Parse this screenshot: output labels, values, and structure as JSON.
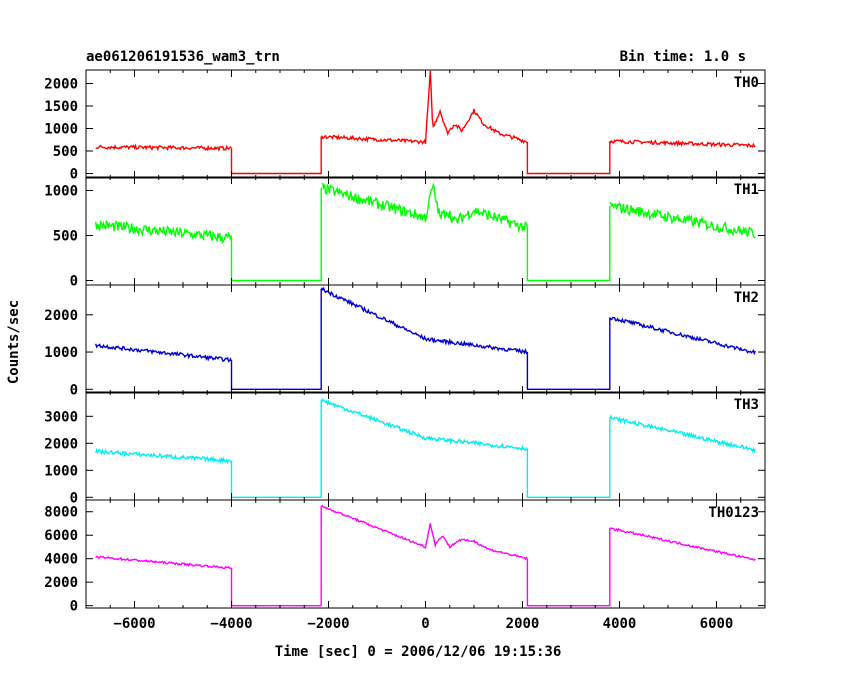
{
  "chart_data": {
    "type": "line",
    "title_left": "ae061206191536_wam3_trn",
    "title_right": "Bin time: 1.0 s",
    "xlabel": "Time [sec] 0 = 2006/12/06 19:15:36",
    "ylabel": "Counts/sec",
    "xlim": [
      -7000,
      7000
    ],
    "x_ticks": [
      -6000,
      -4000,
      -2000,
      0,
      2000,
      4000,
      6000
    ],
    "x_tick_labels": [
      "−6000",
      "−4000",
      "−2000",
      "0",
      "2000",
      "4000",
      "6000"
    ],
    "gaps": [
      [
        -4000,
        -2150
      ],
      [
        2100,
        3800
      ]
    ],
    "panels": [
      {
        "name": "TH0",
        "color": "#ff0000",
        "ylim": [
          -100,
          2300
        ],
        "y_ticks": [
          0,
          500,
          1000,
          1500,
          2000
        ],
        "x": [
          -6800,
          -4000,
          -2150,
          0,
          100,
          150,
          300,
          450,
          600,
          750,
          1000,
          1200,
          1500,
          2100,
          3800,
          6800
        ],
        "values": [
          590,
          560,
          820,
          700,
          2250,
          1000,
          1400,
          900,
          1100,
          950,
          1400,
          1100,
          900,
          700,
          720,
          620
        ]
      },
      {
        "name": "TH1",
        "color": "#00ff00",
        "ylim": [
          -50,
          1150
        ],
        "y_ticks": [
          0,
          500,
          1000
        ],
        "x": [
          -6800,
          -4000,
          -2150,
          0,
          150,
          300,
          450,
          600,
          1000,
          2100,
          3800,
          6800
        ],
        "values": [
          620,
          470,
          1030,
          700,
          1050,
          700,
          780,
          650,
          780,
          580,
          830,
          520
        ],
        "noise": 60
      },
      {
        "name": "TH2",
        "color": "#0000cc",
        "ylim": [
          -100,
          2800
        ],
        "y_ticks": [
          0,
          1000,
          2000
        ],
        "x": [
          -6800,
          -4000,
          -2150,
          0,
          2100,
          3800,
          6800
        ],
        "values": [
          1180,
          780,
          2700,
          1350,
          1000,
          1930,
          980
        ],
        "noise": 50
      },
      {
        "name": "TH3",
        "color": "#00eeee",
        "ylim": [
          -100,
          3900
        ],
        "y_ticks": [
          0,
          1000,
          2000,
          3000
        ],
        "x": [
          -6800,
          -4000,
          -2150,
          0,
          2100,
          3800,
          6800
        ],
        "values": [
          1700,
          1350,
          3600,
          2200,
          1800,
          2950,
          1750
        ],
        "noise": 70
      },
      {
        "name": "TH0123",
        "color": "#ff00ff",
        "ylim": [
          -200,
          9000
        ],
        "y_ticks": [
          0,
          2000,
          4000,
          6000,
          8000
        ],
        "x": [
          -6800,
          -4000,
          -2150,
          0,
          100,
          200,
          350,
          500,
          700,
          1000,
          1300,
          2100,
          3800,
          6800
        ],
        "values": [
          4150,
          3200,
          8500,
          5000,
          7000,
          5200,
          6000,
          5000,
          5600,
          5500,
          4800,
          4000,
          6600,
          3900
        ],
        "noise": 90
      }
    ]
  }
}
